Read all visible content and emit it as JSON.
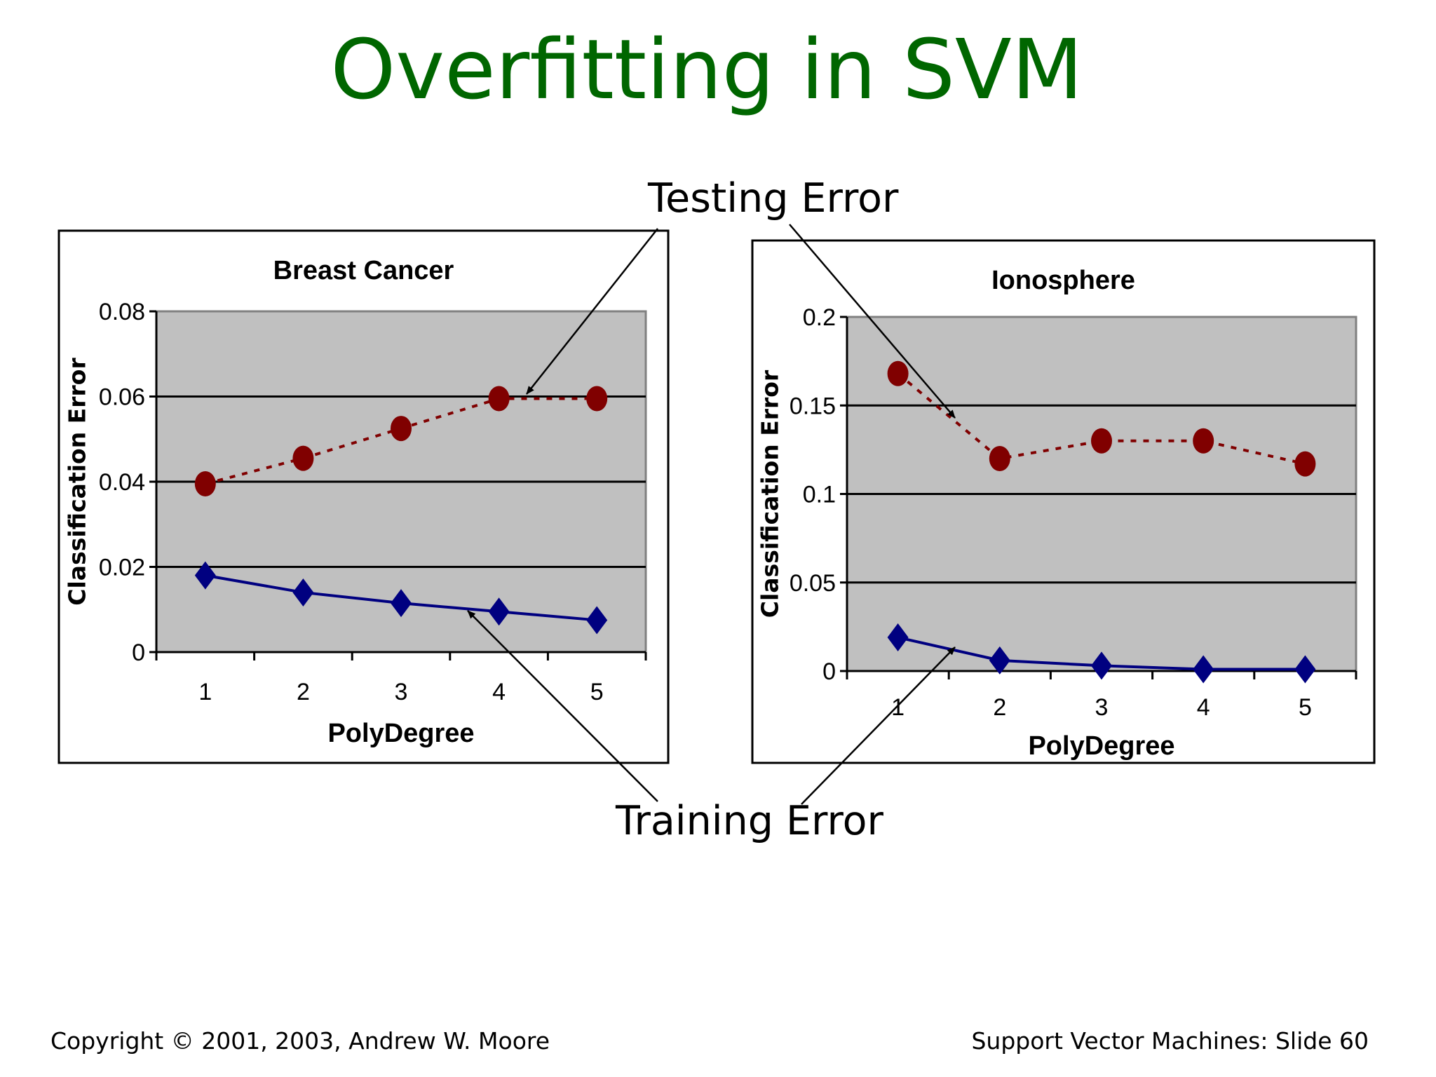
{
  "slide": {
    "title": "Overfitting in SVM",
    "annotations": {
      "testing": "Testing Error",
      "training": "Training Error"
    },
    "footer_left": "Copyright © 2001, 2003, Andrew W. Moore",
    "footer_right": "Support Vector Machines: Slide 60"
  },
  "colors": {
    "title": "#006600",
    "testing": "#800000",
    "training": "#000080",
    "plot_bg": "#c0c0c0"
  },
  "chart_data": [
    {
      "type": "line",
      "title": "Breast Cancer",
      "xlabel": "PolyDegree",
      "ylabel": "Classification Error",
      "categories": [
        "1",
        "2",
        "3",
        "4",
        "5"
      ],
      "ylim": [
        0,
        0.08
      ],
      "yticks": [
        "0",
        "0.02",
        "0.04",
        "0.06",
        "0.08"
      ],
      "ytick_values": [
        0,
        0.02,
        0.04,
        0.06,
        0.08
      ],
      "grid": true,
      "series": [
        {
          "name": "Testing Error",
          "values": [
            0.0395,
            0.0455,
            0.0525,
            0.0595,
            0.0595
          ]
        },
        {
          "name": "Training Error",
          "values": [
            0.018,
            0.014,
            0.0115,
            0.0095,
            0.0075
          ]
        }
      ]
    },
    {
      "type": "line",
      "title": "Ionosphere",
      "xlabel": "PolyDegree",
      "ylabel": "Classification Error",
      "categories": [
        "1",
        "2",
        "3",
        "4",
        "5"
      ],
      "ylim": [
        0,
        0.2
      ],
      "yticks": [
        "0",
        "0.05",
        "0.1",
        "0.15",
        "0.2"
      ],
      "ytick_values": [
        0,
        0.05,
        0.1,
        0.15,
        0.2
      ],
      "grid": true,
      "series": [
        {
          "name": "Testing Error",
          "values": [
            0.168,
            0.12,
            0.13,
            0.13,
            0.117
          ]
        },
        {
          "name": "Training Error",
          "values": [
            0.019,
            0.006,
            0.003,
            0.001,
            0.001
          ]
        }
      ]
    }
  ]
}
